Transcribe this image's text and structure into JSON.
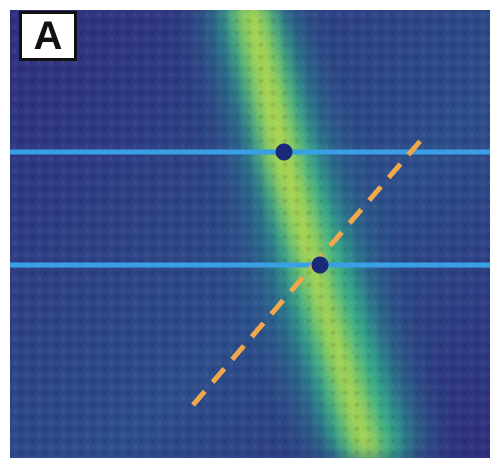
{
  "panel": {
    "label": "A"
  },
  "colors": {
    "background_low": "#2f2f7d",
    "background_mid": "#2c6e8e",
    "ridge_mid": "#33b28a",
    "ridge_high": "#d6e33a",
    "horizontal_lines": "#3aa0e6",
    "intersection_points": "#1b2a78",
    "dashed_line": "#f0a84a",
    "label_background": "#ffffff",
    "label_border": "#111111"
  },
  "markers": {
    "horizontal_line_count": 2,
    "intersection_point_count": 2,
    "dashed_line_count": 1
  }
}
